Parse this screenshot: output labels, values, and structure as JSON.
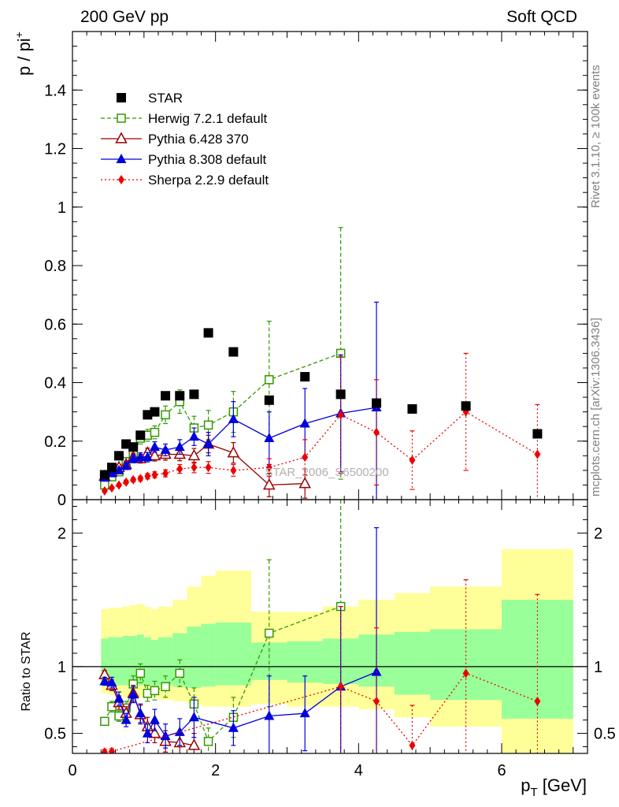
{
  "header": {
    "left": "200 GeV pp",
    "right": "Soft QCD"
  },
  "side_text": {
    "rivet": "Rivet 3.1.10, ≥ 100k events",
    "mcplots": "mcplots.cern.ch [arXiv:1306.3436]"
  },
  "watermark": "STAR_2006_S6500200",
  "colors": {
    "star": "#000000",
    "herwig": "#339900",
    "pythia6": "#990000",
    "pythia8": "#0000dd",
    "sherpa": "#ee0000",
    "band_outer": "#ffff99",
    "band_inner": "#99ff99"
  },
  "chart_data": [
    {
      "type": "scatter",
      "ylabel_main": "p / pi",
      "ylabel_sup": "+",
      "xlim": [
        0,
        7.2
      ],
      "ylim": [
        0,
        1.6
      ],
      "yticks": [
        0,
        0.2,
        0.4,
        0.6,
        0.8,
        1,
        1.2,
        1.4
      ],
      "ytick_labels": [
        "0",
        "0.2",
        "0.4",
        "0.6",
        "0.8",
        "1",
        "1.2",
        "1.4"
      ],
      "legend_position": "top-left",
      "series": [
        {
          "name": "STAR",
          "marker": "square-filled",
          "style": "none",
          "x": [
            0.45,
            0.55,
            0.65,
            0.75,
            0.85,
            0.95,
            1.05,
            1.15,
            1.3,
            1.5,
            1.7,
            1.9,
            2.25,
            2.75,
            3.25,
            3.75,
            4.25,
            4.75,
            5.5,
            6.5
          ],
          "y": [
            0.085,
            0.11,
            0.15,
            0.19,
            0.18,
            0.22,
            0.29,
            0.3,
            0.355,
            0.355,
            0.36,
            0.57,
            0.505,
            0.34,
            0.42,
            0.36,
            0.33,
            0.31,
            0.32,
            0.225
          ],
          "err": []
        },
        {
          "name": "Herwig 7.2.1 default",
          "marker": "square-open",
          "style": "dashed",
          "x": [
            0.45,
            0.55,
            0.65,
            0.75,
            0.85,
            0.95,
            1.05,
            1.15,
            1.3,
            1.5,
            1.7,
            1.9,
            2.25,
            2.75,
            3.75
          ],
          "y": [
            0.05,
            0.078,
            0.095,
            0.13,
            0.155,
            0.21,
            0.22,
            0.23,
            0.29,
            0.335,
            0.245,
            0.255,
            0.3,
            0.41,
            0.5
          ],
          "err": [
            0.01,
            0.01,
            0.012,
            0.014,
            0.015,
            0.02,
            0.02,
            0.022,
            0.03,
            0.04,
            0.04,
            0.05,
            0.07,
            0.2,
            0.43
          ]
        },
        {
          "name": "Pythia 6.428 370",
          "marker": "triangle-open",
          "style": "solid",
          "x": [
            0.45,
            0.55,
            0.65,
            0.75,
            0.85,
            0.95,
            1.05,
            1.15,
            1.3,
            1.5,
            1.7,
            1.9,
            2.25,
            2.75,
            3.25
          ],
          "y": [
            0.08,
            0.095,
            0.11,
            0.12,
            0.145,
            0.14,
            0.16,
            0.15,
            0.155,
            0.155,
            0.15,
            0.19,
            0.16,
            0.05,
            0.055
          ],
          "err": [
            0.008,
            0.008,
            0.01,
            0.012,
            0.014,
            0.015,
            0.016,
            0.018,
            0.02,
            0.022,
            0.025,
            0.03,
            0.035,
            0.04,
            0.05
          ]
        },
        {
          "name": "Pythia 8.308 default",
          "marker": "triangle-filled",
          "style": "solid",
          "x": [
            0.45,
            0.55,
            0.65,
            0.75,
            0.85,
            0.95,
            1.05,
            1.15,
            1.3,
            1.5,
            1.7,
            1.9,
            2.25,
            2.75,
            3.25,
            3.75,
            4.25
          ],
          "y": [
            0.075,
            0.09,
            0.1,
            0.115,
            0.14,
            0.145,
            0.145,
            0.18,
            0.17,
            0.18,
            0.215,
            0.19,
            0.275,
            0.21,
            0.26,
            0.295,
            0.315
          ],
          "err": [
            0.008,
            0.008,
            0.01,
            0.012,
            0.014,
            0.015,
            0.016,
            0.018,
            0.02,
            0.025,
            0.03,
            0.04,
            0.06,
            0.09,
            0.12,
            0.2,
            0.36
          ]
        },
        {
          "name": "Sherpa 2.2.9 default",
          "marker": "diamond-filled",
          "style": "dotted",
          "x": [
            0.45,
            0.55,
            0.65,
            0.75,
            0.85,
            0.95,
            1.05,
            1.15,
            1.3,
            1.5,
            1.7,
            1.9,
            2.25,
            2.75,
            3.25,
            3.75,
            4.25,
            4.75,
            5.5,
            6.5
          ],
          "y": [
            0.03,
            0.04,
            0.05,
            0.06,
            0.068,
            0.072,
            0.08,
            0.085,
            0.09,
            0.105,
            0.11,
            0.11,
            0.1,
            0.11,
            0.145,
            0.29,
            0.23,
            0.135,
            0.3,
            0.155
          ],
          "err": [
            0.004,
            0.004,
            0.005,
            0.006,
            0.007,
            0.008,
            0.009,
            0.01,
            0.012,
            0.015,
            0.018,
            0.02,
            0.02,
            0.03,
            0.06,
            0.2,
            0.18,
            0.1,
            0.2,
            0.17
          ]
        }
      ]
    },
    {
      "type": "scatter",
      "ylabel": "Ratio to STAR",
      "xlabel_main": "p",
      "xlabel_sub": "T",
      "xlabel_unit": " [GeV]",
      "xlim": [
        0,
        7.2
      ],
      "ylim": [
        0.35,
        2.25
      ],
      "xticks": [
        0,
        2,
        4,
        6
      ],
      "xtick_labels": [
        "0",
        "2",
        "4",
        "6"
      ],
      "yticks": [
        0.5,
        1,
        2
      ],
      "ytick_labels": [
        "0.5",
        "1",
        "2"
      ],
      "bands": {
        "edges": [
          0.4,
          0.5,
          0.6,
          0.7,
          0.8,
          0.9,
          1.0,
          1.1,
          1.2,
          1.4,
          1.6,
          1.8,
          2.0,
          2.5,
          3.0,
          3.5,
          4.0,
          4.5,
          5.0,
          6.0,
          7.0
        ],
        "outer_lo": [
          0.8,
          0.79,
          0.78,
          0.77,
          0.78,
          0.77,
          0.76,
          0.77,
          0.75,
          0.74,
          0.72,
          0.7,
          0.7,
          0.72,
          0.7,
          0.7,
          0.68,
          0.62,
          0.55,
          0.35
        ],
        "outer_hi": [
          1.43,
          1.44,
          1.44,
          1.45,
          1.46,
          1.47,
          1.45,
          1.43,
          1.45,
          1.5,
          1.6,
          1.68,
          1.72,
          1.41,
          1.41,
          1.45,
          1.5,
          1.55,
          1.6,
          1.88
        ],
        "inner_lo": [
          0.86,
          0.86,
          0.86,
          0.86,
          0.85,
          0.86,
          0.86,
          0.85,
          0.86,
          0.85,
          0.84,
          0.85,
          0.86,
          0.9,
          0.88,
          0.87,
          0.85,
          0.79,
          0.75,
          0.61
        ],
        "inner_hi": [
          1.21,
          1.22,
          1.22,
          1.23,
          1.23,
          1.24,
          1.22,
          1.2,
          1.22,
          1.25,
          1.3,
          1.32,
          1.33,
          1.18,
          1.19,
          1.21,
          1.24,
          1.26,
          1.28,
          1.5
        ]
      },
      "series": [
        {
          "name": "Herwig 7.2.1 default",
          "marker": "square-open",
          "style": "dashed",
          "x": [
            0.45,
            0.55,
            0.65,
            0.75,
            0.85,
            0.95,
            1.05,
            1.15,
            1.3,
            1.5,
            1.7,
            1.9,
            2.25,
            2.75,
            3.75
          ],
          "y": [
            0.59,
            0.7,
            0.63,
            0.69,
            0.87,
            0.95,
            0.8,
            0.82,
            0.85,
            0.95,
            0.72,
            0.44,
            0.62,
            1.25,
            1.45
          ],
          "err": [
            0.03,
            0.04,
            0.04,
            0.05,
            0.06,
            0.07,
            0.06,
            0.07,
            0.08,
            0.1,
            0.12,
            0.1,
            0.15,
            0.55,
            1.2
          ]
        },
        {
          "name": "Pythia 6.428 370",
          "marker": "triangle-open",
          "style": "solid",
          "x": [
            0.45,
            0.55,
            0.65,
            0.75,
            0.85,
            0.95,
            1.05,
            1.15,
            1.3,
            1.5,
            1.7
          ],
          "y": [
            0.94,
            0.86,
            0.73,
            0.65,
            0.8,
            0.64,
            0.55,
            0.5,
            0.44,
            0.43,
            0.41
          ],
          "err": [
            0.03,
            0.04,
            0.05,
            0.05,
            0.06,
            0.07,
            0.07,
            0.07,
            0.08,
            0.08,
            0.09
          ]
        },
        {
          "name": "Pythia 8.308 default",
          "marker": "triangle-filled",
          "style": "solid",
          "x": [
            0.45,
            0.55,
            0.65,
            0.75,
            0.85,
            0.95,
            1.05,
            1.15,
            1.3,
            1.5,
            1.7,
            2.25,
            2.75,
            3.25,
            3.75,
            4.25
          ],
          "y": [
            0.89,
            0.88,
            0.76,
            0.6,
            0.79,
            0.65,
            0.5,
            0.6,
            0.48,
            0.51,
            0.62,
            0.54,
            0.63,
            0.65,
            0.85,
            0.96
          ],
          "err": [
            0.03,
            0.04,
            0.05,
            0.05,
            0.06,
            0.07,
            0.07,
            0.08,
            0.09,
            0.1,
            0.15,
            0.13,
            0.3,
            0.28,
            0.6,
            1.08
          ]
        },
        {
          "name": "Sherpa 2.2.9 default",
          "marker": "diamond-filled",
          "style": "dotted",
          "x": [
            0.45,
            0.55,
            3.75,
            4.25,
            4.75,
            5.5,
            6.5
          ],
          "y": [
            0.36,
            0.365,
            0.85,
            0.74,
            0.41,
            0.95,
            0.74
          ],
          "err": [
            0.02,
            0.02,
            0.6,
            0.55,
            0.3,
            0.7,
            0.8
          ]
        }
      ]
    }
  ]
}
